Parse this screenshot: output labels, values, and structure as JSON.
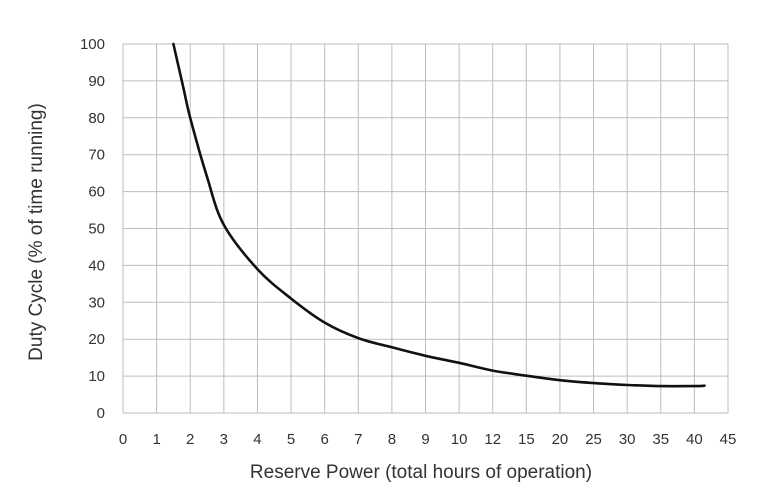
{
  "chart_data": {
    "type": "line",
    "xlabel": "Reserve Power (total hours of operation)",
    "ylabel": "Duty Cycle (% of time running)",
    "x_tick_labels": [
      "0",
      "1",
      "2",
      "3",
      "4",
      "5",
      "6",
      "7",
      "8",
      "9",
      "10",
      "12",
      "15",
      "20",
      "25",
      "30",
      "35",
      "40",
      "45"
    ],
    "y_tick_labels": [
      "0",
      "10",
      "20",
      "30",
      "40",
      "50",
      "60",
      "70",
      "80",
      "90",
      "100"
    ],
    "ylim": [
      0,
      100
    ],
    "grid": true,
    "line_color": "#111111",
    "series": [
      {
        "x": [
          1.5,
          1.8,
          2,
          2.5,
          3,
          4,
          5,
          6,
          7,
          8,
          9,
          10,
          12,
          15,
          20,
          25,
          30,
          35,
          40,
          41.5
        ],
        "y": [
          100,
          88,
          80,
          64,
          51,
          39,
          31,
          24.5,
          20.3,
          17.8,
          15.5,
          13.6,
          11.5,
          10.1,
          8.9,
          8.1,
          7.6,
          7.3,
          7.3,
          7.4
        ]
      }
    ]
  }
}
